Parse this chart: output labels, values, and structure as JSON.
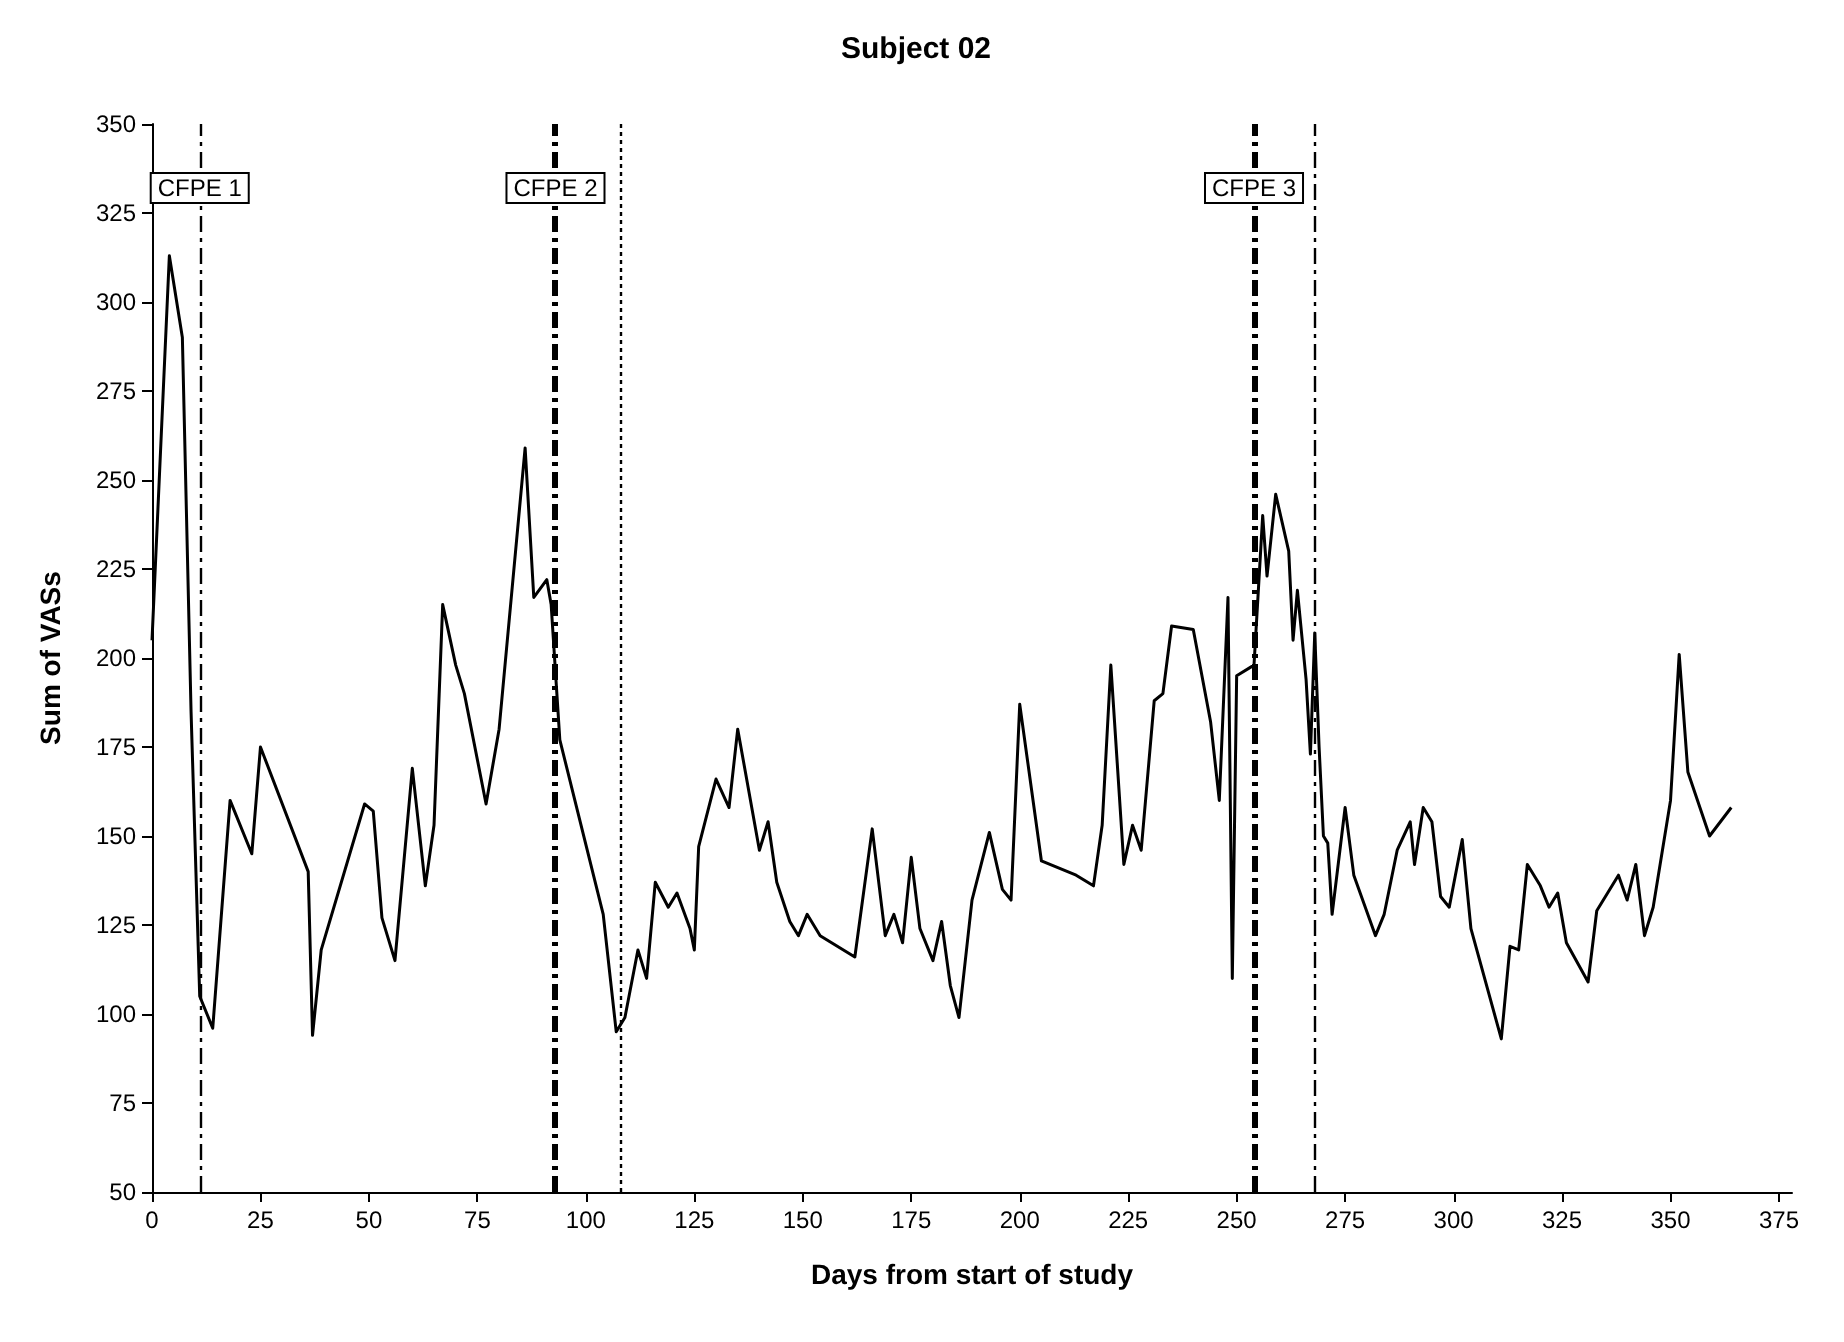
{
  "chart_data": {
    "type": "line",
    "title": "Subject 02",
    "xlabel": "Days from start of study",
    "ylabel": "Sum of VASs",
    "x": [
      0,
      4,
      7,
      9,
      11,
      14,
      18,
      23,
      25,
      36,
      37,
      39,
      49,
      51,
      53,
      56,
      60,
      63,
      65,
      67,
      70,
      72,
      77,
      80,
      86,
      88,
      91,
      92,
      94,
      104,
      107,
      109,
      112,
      114,
      116,
      119,
      121,
      124,
      125,
      126,
      130,
      133,
      135,
      140,
      142,
      144,
      147,
      149,
      151,
      154,
      162,
      166,
      169,
      171,
      173,
      175,
      177,
      180,
      182,
      184,
      186,
      189,
      193,
      196,
      198,
      200,
      205,
      213,
      217,
      219,
      221,
      224,
      226,
      228,
      231,
      233,
      235,
      240,
      244,
      246,
      248,
      249,
      250,
      254,
      256,
      257,
      259,
      262,
      263,
      264,
      266,
      267,
      268,
      269,
      270,
      271,
      272,
      275,
      277,
      282,
      284,
      287,
      290,
      291,
      293,
      295,
      297,
      299,
      302,
      304,
      311,
      313,
      315,
      317,
      320,
      322,
      324,
      326,
      331,
      333,
      338,
      340,
      342,
      344,
      346,
      350,
      352,
      354,
      359,
      364
    ],
    "series": [
      {
        "color": "#000000",
        "values": [
          205,
          313,
          290,
          185,
          105,
          96,
          160,
          145,
          175,
          140,
          94,
          118,
          159,
          157,
          127,
          115,
          169,
          136,
          153,
          215,
          198,
          190,
          159,
          180,
          259,
          217,
          222,
          215,
          177,
          128,
          95,
          99,
          118,
          110,
          137,
          130,
          134,
          124,
          118,
          147,
          166,
          158,
          180,
          146,
          154,
          137,
          126,
          122,
          128,
          122,
          116,
          152,
          122,
          128,
          120,
          144,
          124,
          115,
          126,
          108,
          99,
          132,
          151,
          135,
          132,
          187,
          143,
          139,
          136,
          153,
          198,
          142,
          153,
          146,
          188,
          190,
          209,
          208,
          182,
          160,
          217,
          110,
          195,
          198,
          240,
          223,
          246,
          230,
          205,
          219,
          194,
          173,
          207,
          175,
          150,
          148,
          128,
          158,
          139,
          122,
          128,
          146,
          154,
          142,
          158,
          154,
          133,
          130,
          149,
          124,
          93,
          119,
          118,
          142,
          136,
          130,
          134,
          120,
          109,
          129,
          139,
          132,
          142,
          122,
          130,
          160,
          201,
          168,
          150,
          158
        ]
      }
    ],
    "xlim": [
      0,
      378
    ],
    "xticks": [
      0,
      25,
      50,
      75,
      100,
      125,
      150,
      175,
      200,
      225,
      250,
      275,
      300,
      325,
      350,
      375
    ],
    "ylim": [
      50,
      350
    ],
    "yticks": [
      50,
      75,
      100,
      125,
      150,
      175,
      200,
      225,
      250,
      275,
      300,
      325,
      350
    ],
    "grid": false,
    "marker": "none",
    "line_style": "solid",
    "ref_lines": [
      {
        "axis": "x",
        "value": 11,
        "label": "CFPE 1",
        "line_style": "dashed",
        "color": "#000000"
      },
      {
        "axis": "x",
        "value": 93,
        "label": "CFPE 2",
        "line_style": "dashed",
        "color": "#000000"
      },
      {
        "axis": "x",
        "value": 108,
        "line_style": "dotted",
        "color": "#000000"
      },
      {
        "axis": "x",
        "value": 254,
        "label": "CFPE 3",
        "line_style": "dashed",
        "color": "#000000"
      },
      {
        "axis": "x",
        "value": 268,
        "line_style": "dashed",
        "color": "#000000"
      }
    ]
  }
}
